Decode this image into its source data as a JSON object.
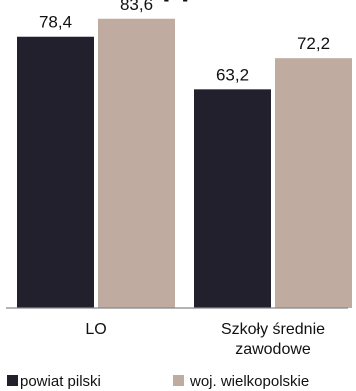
{
  "chart_data": {
    "type": "bar",
    "title_fragment": "...[%]",
    "categories": [
      "LO",
      [
        "Szkoły średnie",
        "zawodowe"
      ]
    ],
    "series": [
      {
        "name": "powiat pilski",
        "values": [
          78.4,
          63.2
        ],
        "labels": [
          "78,4",
          "63,2"
        ],
        "color": "#23202e"
      },
      {
        "name": "woj. wielkopolskie",
        "values": [
          83.6,
          72.2
        ],
        "labels": [
          "83,6",
          "72,2"
        ],
        "color": "#bfaba0"
      }
    ],
    "ylim": [
      0,
      100
    ],
    "grid": false,
    "legend_position": "bottom",
    "axis_color": "#888888"
  }
}
